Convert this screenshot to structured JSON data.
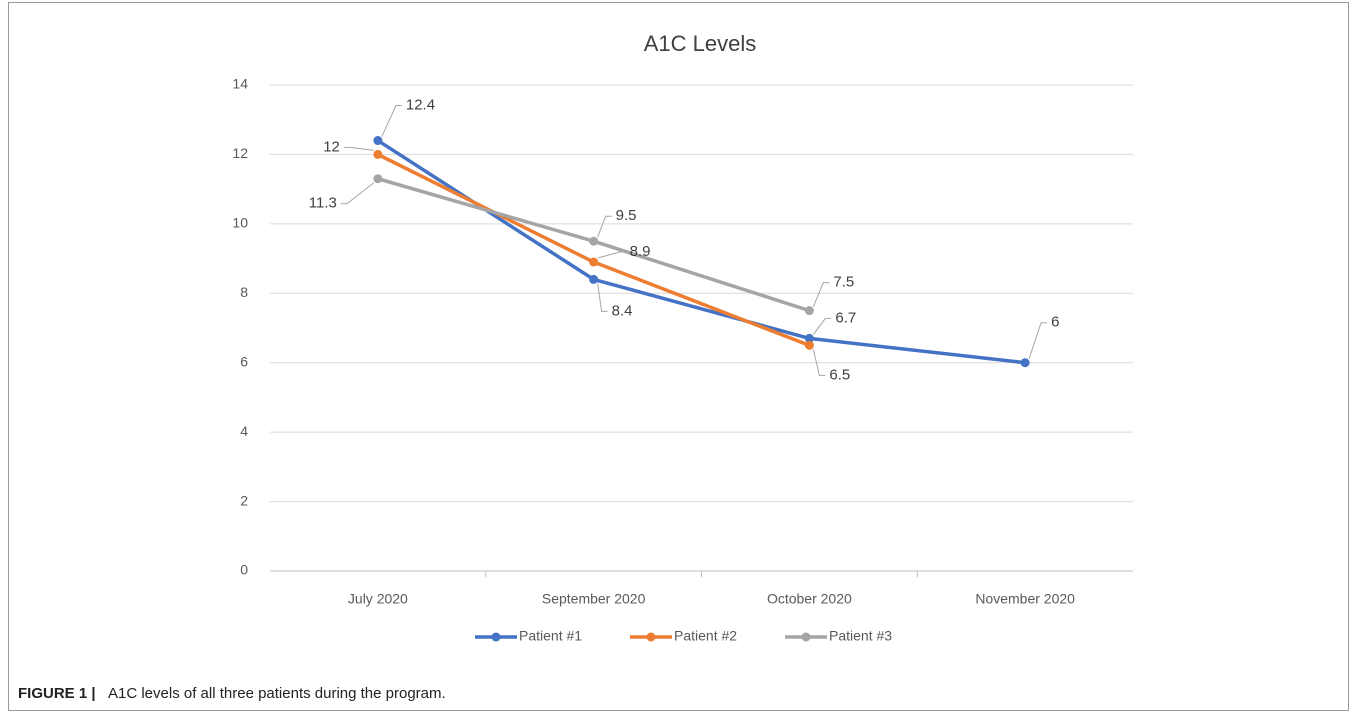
{
  "chart_data": {
    "type": "line",
    "title": "A1C Levels",
    "categories": [
      "July 2020",
      "September 2020",
      "October 2020",
      "November 2020"
    ],
    "series": [
      {
        "name": "Patient #1",
        "color": "#4472c4",
        "values": [
          12.4,
          8.4,
          6.7,
          6
        ]
      },
      {
        "name": "Patient #2",
        "color": "#ed7d31",
        "values": [
          12,
          8.9,
          6.5,
          null
        ]
      },
      {
        "name": "Patient #3",
        "color": "#a5a5a5",
        "values": [
          11.3,
          9.5,
          7.5,
          null
        ]
      }
    ],
    "ylim": [
      0,
      14
    ],
    "yticks": [
      0,
      2,
      4,
      6,
      8,
      10,
      12,
      14
    ],
    "grid": true,
    "legend": "bottom"
  },
  "caption": {
    "label": "FIGURE 1 |",
    "text": "A1C levels of all three patients during the program."
  }
}
